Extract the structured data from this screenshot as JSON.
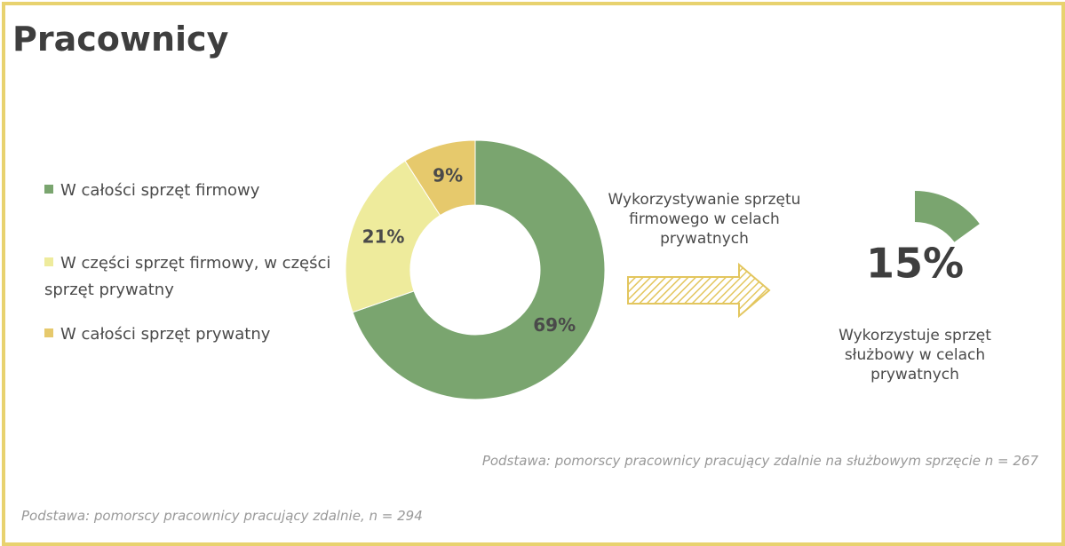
{
  "title": "Pracownicy",
  "chart_data": [
    {
      "type": "donut",
      "categories": [
        "W całości sprzęt firmowy",
        "W części sprzęt firmowy, w części sprzęt prywatny",
        "W całości sprzęt prywatny"
      ],
      "values": [
        69,
        21,
        9
      ],
      "value_labels": [
        "69%",
        "21%",
        "9%"
      ],
      "colors": [
        "#7aa56f",
        "#eeeb9c",
        "#e6c96c"
      ],
      "legend": "left",
      "note": "Podstawa: pomorscy pracownicy pracujący zdalnie, n = 294"
    },
    {
      "type": "pie",
      "values": [
        15
      ],
      "value_labels": [
        "15%"
      ],
      "color": "#7aa56f",
      "caption": "Wykorzystuje sprzęt służbowy w celach prywatnych",
      "note": "Podstawa: pomorscy pracownicy pracujący zdalnie na służbowym sprzęcie n = 267"
    }
  ],
  "arrow_text": "Wykorzystywanie sprzętu firmowego w celach prywatnych"
}
